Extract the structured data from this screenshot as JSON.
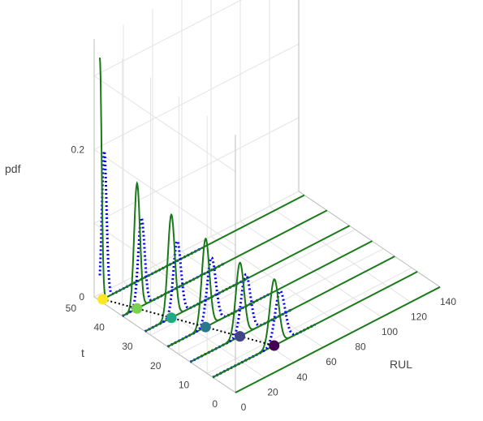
{
  "chart_data": {
    "type": "line-3d",
    "axes": {
      "x": {
        "label": "RUL",
        "range": [
          0,
          140
        ],
        "ticks": [
          "0",
          "20",
          "40",
          "60",
          "80",
          "100",
          "120",
          "140"
        ]
      },
      "y": {
        "label": "t",
        "range": [
          0,
          50
        ],
        "ticks": [
          "0",
          "10",
          "20",
          "30",
          "40",
          "50"
        ]
      },
      "z": {
        "label": "pdf",
        "range": [
          0,
          0.35
        ],
        "ticks": [
          "0",
          "0.2"
        ]
      }
    },
    "grid": true,
    "series": [
      {
        "style": "solid-green",
        "color": "#1a7a1a"
      },
      {
        "style": "dotted-blue",
        "color": "#0000ff"
      },
      {
        "style": "dotted-black",
        "color": "#000000"
      }
    ],
    "curves": [
      {
        "t": 48,
        "actual_rul": 2,
        "green_peak_x": 0,
        "green_peak": 0.33,
        "green_sigma": 1.2,
        "blue_peak_x": 3,
        "blue_peak": 0.2,
        "blue_sigma": 1.6,
        "dot_color": "#fde725"
      },
      {
        "t": 40,
        "actual_rul": 10,
        "green_peak_x": 10,
        "green_peak": 0.17,
        "green_sigma": 2.0,
        "blue_peak_x": 13,
        "blue_peak": 0.12,
        "blue_sigma": 2.2,
        "dot_color": "#7ad151"
      },
      {
        "t": 32,
        "actual_rul": 18,
        "green_peak_x": 18,
        "green_peak": 0.14,
        "green_sigma": 2.4,
        "blue_peak_x": 22,
        "blue_peak": 0.1,
        "blue_sigma": 2.6,
        "dot_color": "#22a884"
      },
      {
        "t": 24,
        "actual_rul": 26,
        "green_peak_x": 26,
        "green_peak": 0.12,
        "green_sigma": 2.6,
        "blue_peak_x": 30,
        "blue_peak": 0.09,
        "blue_sigma": 3.0,
        "dot_color": "#2a788e"
      },
      {
        "t": 16,
        "actual_rul": 34,
        "green_peak_x": 34,
        "green_peak": 0.1,
        "green_sigma": 2.8,
        "blue_peak_x": 38,
        "blue_peak": 0.08,
        "blue_sigma": 3.2,
        "dot_color": "#414487"
      },
      {
        "t": 8,
        "actual_rul": 42,
        "green_peak_x": 42,
        "green_peak": 0.09,
        "green_sigma": 3.0,
        "blue_peak_x": 46,
        "blue_peak": 0.07,
        "blue_sigma": 3.4,
        "dot_color": "#440154"
      }
    ],
    "baselines_t": [
      48,
      40,
      32,
      24,
      16,
      8,
      0
    ]
  }
}
